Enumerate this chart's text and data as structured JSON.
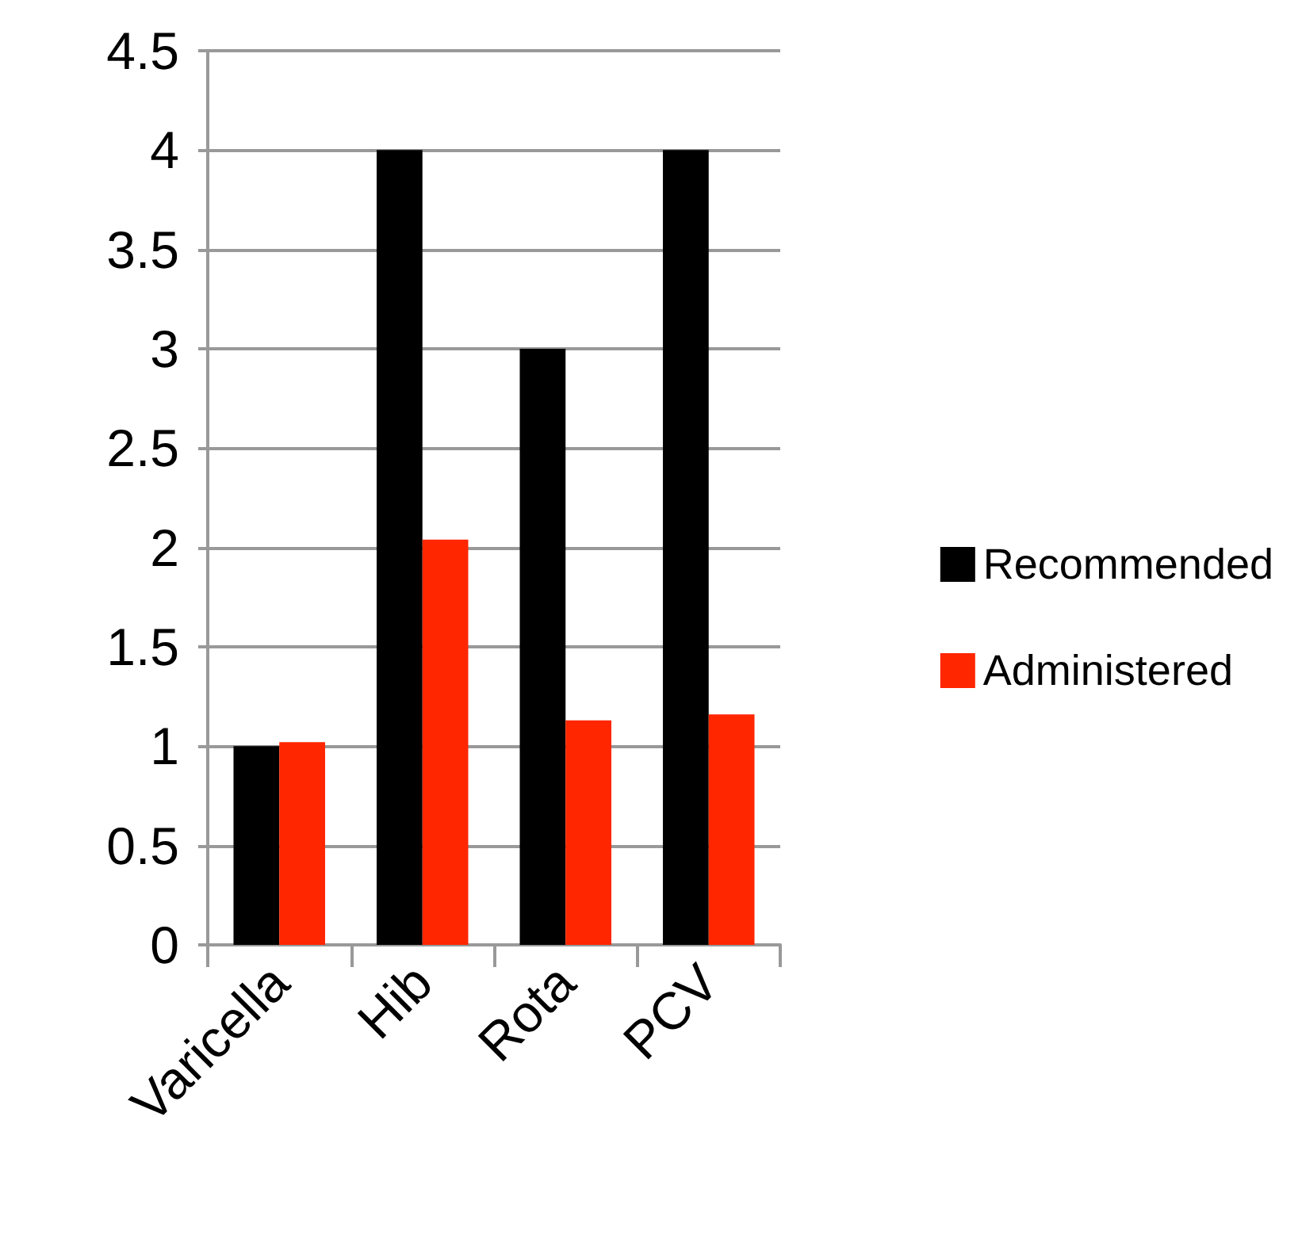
{
  "chart_data": {
    "type": "bar",
    "categories": [
      "Varicella",
      "Hib",
      "Rota",
      "PCV"
    ],
    "series": [
      {
        "name": "Recommended",
        "color": "#000000",
        "values": [
          1,
          4,
          3,
          4
        ]
      },
      {
        "name": "Administered",
        "color": "#ff2600",
        "values": [
          1.02,
          2.04,
          1.13,
          1.16
        ]
      }
    ],
    "ylim": [
      0,
      4.5
    ],
    "yticks": [
      0,
      0.5,
      1,
      1.5,
      2,
      2.5,
      3,
      3.5,
      4,
      4.5
    ],
    "grid": "y",
    "legend": "right"
  }
}
